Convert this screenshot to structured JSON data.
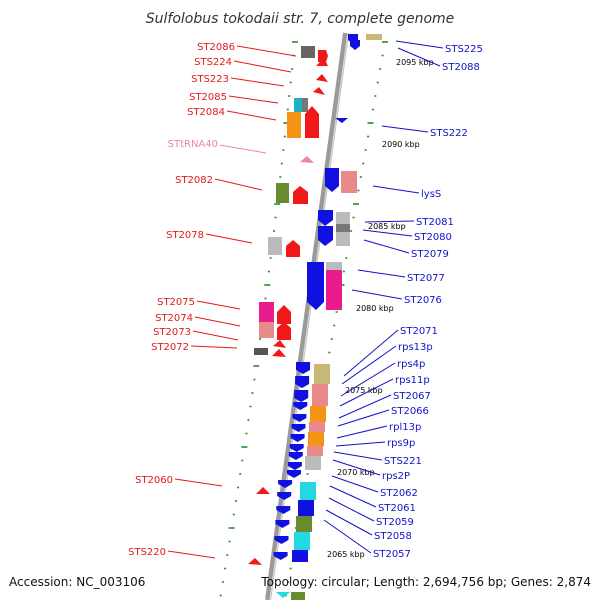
{
  "title": "Sulfolobus tokodaii str. 7, complete genome",
  "accession": "Accession: NC_003106",
  "topology": "Topology: circular; Length: 2,694,756 bp; Genes: 2,874",
  "colors": {
    "left_label": "#e11a1a",
    "right_label": "#1212c8",
    "trna": "#f07fb8",
    "backbone": "#999999",
    "tick": "#2a8a2a"
  },
  "kbp_labels": [
    {
      "text": "2095 kbp"
    },
    {
      "text": "2090 kbp"
    },
    {
      "text": "2085 kbp"
    },
    {
      "text": "2080 kbp"
    },
    {
      "text": "2075 kbp"
    },
    {
      "text": "2070 kbp"
    },
    {
      "text": "2065 kbp"
    }
  ],
  "left_labels": [
    {
      "text": "ST2086",
      "color": "red"
    },
    {
      "text": "STS224",
      "color": "red"
    },
    {
      "text": "STS223",
      "color": "red"
    },
    {
      "text": "ST2085",
      "color": "red"
    },
    {
      "text": "ST2084",
      "color": "red"
    },
    {
      "text": "STtRNA40",
      "color": "pink"
    },
    {
      "text": "ST2082",
      "color": "red"
    },
    {
      "text": "ST2078",
      "color": "red"
    },
    {
      "text": "ST2075",
      "color": "red"
    },
    {
      "text": "ST2074",
      "color": "red"
    },
    {
      "text": "ST2073",
      "color": "red"
    },
    {
      "text": "ST2072",
      "color": "red"
    },
    {
      "text": "ST2060",
      "color": "red"
    },
    {
      "text": "STS220",
      "color": "red"
    }
  ],
  "right_labels": [
    {
      "text": "STS225"
    },
    {
      "text": "ST2088"
    },
    {
      "text": "STS222"
    },
    {
      "text": "lysS"
    },
    {
      "text": "ST2081"
    },
    {
      "text": "ST2080"
    },
    {
      "text": "ST2079"
    },
    {
      "text": "ST2077"
    },
    {
      "text": "ST2076"
    },
    {
      "text": "ST2071"
    },
    {
      "text": "rps13p"
    },
    {
      "text": "rps4p"
    },
    {
      "text": "rps11p"
    },
    {
      "text": "ST2067"
    },
    {
      "text": "ST2066"
    },
    {
      "text": "rpl13p"
    },
    {
      "text": "rps9p"
    },
    {
      "text": "STS221"
    },
    {
      "text": "rps2P"
    },
    {
      "text": "ST2062"
    },
    {
      "text": "ST2061"
    },
    {
      "text": "ST2059"
    },
    {
      "text": "ST2058"
    },
    {
      "text": "ST2057"
    }
  ]
}
